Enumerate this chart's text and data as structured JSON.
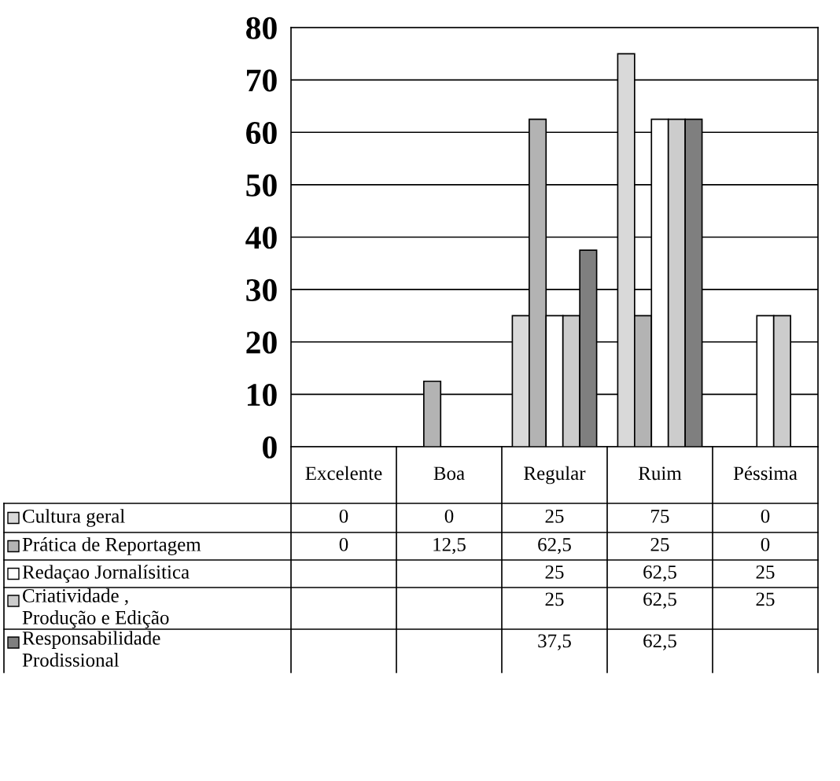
{
  "chart_data": {
    "type": "bar",
    "categories": [
      "Excelente",
      "Boa",
      "Regular",
      "Ruim",
      "Péssima"
    ],
    "series": [
      {
        "name": "Cultura geral",
        "color": "#d9d9d9",
        "values": [
          0,
          0,
          25,
          75,
          0
        ],
        "value_labels": [
          "0",
          "0",
          "25",
          "75",
          "0"
        ]
      },
      {
        "name": "Prática de Reportagem",
        "color": "#b3b3b3",
        "values": [
          0,
          12.5,
          62.5,
          25,
          0
        ],
        "value_labels": [
          "0",
          "12,5",
          "62,5",
          "25",
          "0"
        ]
      },
      {
        "name": "Redaçao Jornalísitica",
        "color": "#ffffff",
        "values": [
          null,
          null,
          25,
          62.5,
          25
        ],
        "value_labels": [
          null,
          null,
          "25",
          "62,5",
          "25"
        ]
      },
      {
        "name": "Criatividade ,\nProdução e Edição",
        "color": "#cccccc",
        "values": [
          null,
          null,
          25,
          62.5,
          25
        ],
        "value_labels": [
          null,
          null,
          "25",
          "62,5",
          "25"
        ]
      },
      {
        "name": "Responsabilidade\nProdissional",
        "color": "#7f7f7f",
        "values": [
          null,
          null,
          37.5,
          62.5,
          null
        ],
        "value_labels": [
          null,
          null,
          "37,5",
          "62,5",
          null
        ]
      }
    ],
    "ylim": [
      0,
      80
    ],
    "yticks": [
      0,
      10,
      20,
      30,
      40,
      50,
      60,
      70,
      80
    ],
    "grid": "y",
    "legend": "bottom"
  }
}
